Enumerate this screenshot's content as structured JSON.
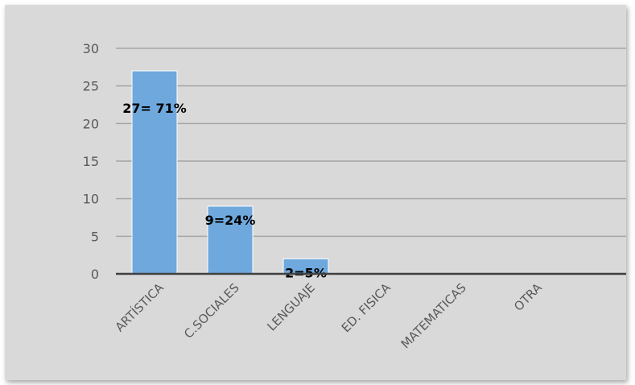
{
  "chart_data": {
    "type": "bar",
    "title": "",
    "xlabel": "",
    "ylabel": "",
    "categories": [
      "ARTÍSTICA",
      "C.SOCIALES",
      "LENGUAJE",
      "ED. FISICA",
      "MATEMATICAS",
      "OTRA"
    ],
    "values": [
      27,
      9,
      2,
      0,
      0,
      0
    ],
    "data_labels": [
      "27= 71%",
      "9=24%",
      "2=5%",
      "",
      "",
      ""
    ],
    "ylim": [
      0,
      30
    ],
    "yticks": [
      0,
      5,
      10,
      15,
      20,
      25,
      30
    ],
    "grid": true,
    "legend": "none",
    "colors": {
      "background": "#d9d9d9",
      "bar": "#6fa8dc",
      "bar_edge": "#ffffff",
      "grid": "#a6a6a6",
      "axis": "#404040",
      "text": "#595959"
    }
  }
}
